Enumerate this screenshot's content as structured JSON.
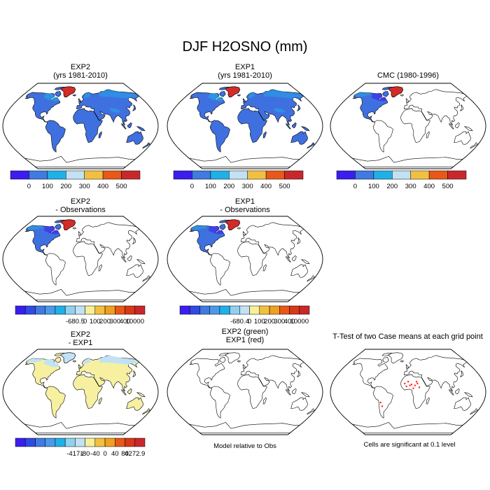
{
  "title": "DJF H2OSNO (mm)",
  "panels": [
    {
      "id": "p1",
      "title1": "EXP2",
      "title2": "(yrs 1981-2010)",
      "fill": "fullblue",
      "colorbar": "cb1"
    },
    {
      "id": "p2",
      "title1": "EXP1",
      "title2": "(yrs 1981-2010)",
      "fill": "fullblue",
      "colorbar": "cb1"
    },
    {
      "id": "p3",
      "title1": "CMC (1980-1996)",
      "title2": "",
      "fill": "namerica",
      "colorbar": "cb1"
    },
    {
      "id": "p4",
      "title1": "EXP2",
      "title2": "- Observations",
      "fill": "namerica",
      "colorbar": "cb2"
    },
    {
      "id": "p5",
      "title1": "EXP1",
      "title2": "- Observations",
      "fill": "namerica",
      "colorbar": "cb3"
    },
    {
      "id": "p6",
      "title1": "EXP2",
      "title2": "- EXP1",
      "fill": "diff",
      "colorbar": "cb4"
    },
    {
      "id": "p7",
      "title1": "EXP2 (green)",
      "title2": "EXP1 (red)",
      "fill": "none",
      "footnote": "Model relative to Obs"
    },
    {
      "id": "p8",
      "title1": "T-Test of two Case means at each grid point",
      "title2": "",
      "fill": "ttest",
      "footnote": "Cells are significant at 0.1 level"
    }
  ],
  "colorbars": {
    "cb1": {
      "colors": [
        "#3a1ef0",
        "#3f7be0",
        "#20b0e8",
        "#c2e2f4",
        "#f2c040",
        "#e85818",
        "#c8282c"
      ],
      "labels": [
        "0",
        "100",
        "200",
        "300",
        "400",
        "500"
      ]
    },
    "cb2": {
      "colors": [
        "#3a1ef0",
        "#2f4ae6",
        "#3f7be0",
        "#4a9ae8",
        "#20b0e8",
        "#8fd1f0",
        "#c2e2f4",
        "#f6f098",
        "#f2c040",
        "#f0a020",
        "#e85818",
        "#d83818",
        "#c8282c"
      ],
      "labels": [
        "-680.5",
        "0",
        "100",
        "200",
        "300",
        "400",
        "10000"
      ]
    },
    "cb3": {
      "colors": [
        "#3a1ef0",
        "#2f4ae6",
        "#3f7be0",
        "#4a9ae8",
        "#20b0e8",
        "#8fd1f0",
        "#c2e2f4",
        "#f6f098",
        "#f2c040",
        "#f0a020",
        "#e85818",
        "#d83818",
        "#c8282c"
      ],
      "labels": [
        "-680.4",
        "0",
        "100",
        "200",
        "300",
        "400",
        "10000"
      ]
    },
    "cb4": {
      "colors": [
        "#3a1ef0",
        "#2f4ae6",
        "#3f7be0",
        "#4a9ae8",
        "#20b0e8",
        "#8fd1f0",
        "#c2e2f4",
        "#f6f098",
        "#f2c040",
        "#f0a020",
        "#e85818",
        "#d83818",
        "#c8282c"
      ],
      "labels": [
        "-4171",
        "-80",
        "-40",
        "0",
        "40",
        "80",
        "4272.9"
      ]
    }
  },
  "chart_data": [
    {
      "type": "heatmap",
      "title": "EXP2",
      "subtitle": "(yrs 1981-2010)",
      "projection": "robinson",
      "colorbar_labels": [
        "0",
        "100",
        "200",
        "300",
        "400",
        "500"
      ]
    },
    {
      "type": "heatmap",
      "title": "EXP1",
      "subtitle": "(yrs 1981-2010)",
      "projection": "robinson",
      "colorbar_labels": [
        "0",
        "100",
        "200",
        "300",
        "400",
        "500"
      ]
    },
    {
      "type": "heatmap",
      "title": "CMC (1980-1996)",
      "projection": "robinson",
      "colorbar_labels": [
        "0",
        "100",
        "200",
        "300",
        "400",
        "500"
      ]
    },
    {
      "type": "heatmap",
      "title": "EXP2",
      "subtitle": "- Observations",
      "projection": "robinson",
      "colorbar_labels": [
        "-680.5",
        "0",
        "100",
        "200",
        "300",
        "400",
        "10000"
      ]
    },
    {
      "type": "heatmap",
      "title": "EXP1",
      "subtitle": "- Observations",
      "projection": "robinson",
      "colorbar_labels": [
        "-680.4",
        "0",
        "100",
        "200",
        "300",
        "400",
        "10000"
      ]
    },
    {
      "type": "heatmap",
      "title": "EXP2",
      "subtitle": "- EXP1",
      "projection": "robinson",
      "colorbar_labels": [
        "-4171",
        "-80",
        "-40",
        "0",
        "40",
        "80",
        "4272.9"
      ]
    },
    {
      "type": "heatmap",
      "title": "EXP2 (green)",
      "subtitle": "EXP1 (red)",
      "projection": "robinson",
      "annotation": "Model relative to Obs"
    },
    {
      "type": "heatmap",
      "title": "T-Test of two Case means at each grid point",
      "projection": "robinson",
      "annotation": "Cells are significant at 0.1 level"
    }
  ]
}
